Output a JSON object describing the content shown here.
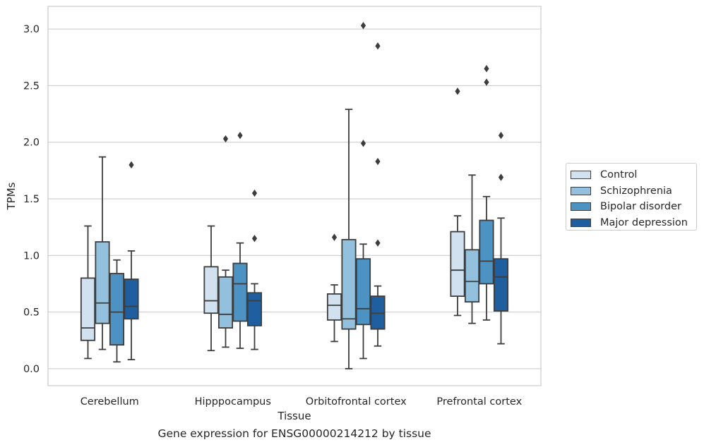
{
  "chart_data": {
    "type": "boxplot",
    "xlabel": "Tissue",
    "ylabel": "TPMs",
    "ylim": [
      -0.15,
      3.2
    ],
    "yticks": [
      0.0,
      0.5,
      1.0,
      1.5,
      2.0,
      2.5,
      3.0
    ],
    "ytick_labels": [
      "0.0",
      "0.5",
      "1.0",
      "1.5",
      "2.0",
      "2.5",
      "3.0"
    ],
    "grid": "horizontal",
    "legend_position": "right",
    "categories": [
      "Cerebellum",
      "Hipppocampus",
      "Orbitofrontal cortex",
      "Prefrontal cortex"
    ],
    "series": [
      {
        "name": "Control",
        "color": "#d1e1f0",
        "boxes": [
          {
            "whislo": 0.09,
            "q1": 0.25,
            "med": 0.36,
            "q3": 0.8,
            "whishi": 1.26,
            "fliers": []
          },
          {
            "whislo": 0.16,
            "q1": 0.49,
            "med": 0.6,
            "q3": 0.9,
            "whishi": 1.26,
            "fliers": []
          },
          {
            "whislo": 0.24,
            "q1": 0.43,
            "med": 0.56,
            "q3": 0.66,
            "whishi": 0.74,
            "fliers": [
              1.16
            ]
          },
          {
            "whislo": 0.47,
            "q1": 0.64,
            "med": 0.87,
            "q3": 1.21,
            "whishi": 1.35,
            "fliers": [
              2.45
            ]
          }
        ]
      },
      {
        "name": "Schizophrenia",
        "color": "#93c0dd",
        "boxes": [
          {
            "whislo": 0.17,
            "q1": 0.4,
            "med": 0.58,
            "q3": 1.12,
            "whishi": 1.87,
            "fliers": []
          },
          {
            "whislo": 0.19,
            "q1": 0.36,
            "med": 0.48,
            "q3": 0.81,
            "whishi": 0.87,
            "fliers": [
              2.03
            ]
          },
          {
            "whislo": 0.0,
            "q1": 0.35,
            "med": 0.44,
            "q3": 1.14,
            "whishi": 2.29,
            "fliers": []
          },
          {
            "whislo": 0.4,
            "q1": 0.59,
            "med": 0.77,
            "q3": 1.05,
            "whishi": 1.71,
            "fliers": []
          }
        ]
      },
      {
        "name": "Bipolar disorder",
        "color": "#4c92c2",
        "boxes": [
          {
            "whislo": 0.06,
            "q1": 0.21,
            "med": 0.5,
            "q3": 0.84,
            "whishi": 0.96,
            "fliers": []
          },
          {
            "whislo": 0.18,
            "q1": 0.42,
            "med": 0.75,
            "q3": 0.93,
            "whishi": 1.11,
            "fliers": [
              2.06
            ]
          },
          {
            "whislo": 0.09,
            "q1": 0.39,
            "med": 0.53,
            "q3": 0.97,
            "whishi": 1.1,
            "fliers": [
              1.99,
              3.03
            ]
          },
          {
            "whislo": 0.43,
            "q1": 0.75,
            "med": 0.95,
            "q3": 1.31,
            "whishi": 1.52,
            "fliers": [
              2.53,
              2.65
            ]
          }
        ]
      },
      {
        "name": "Major depression",
        "color": "#1f5fa0",
        "boxes": [
          {
            "whislo": 0.08,
            "q1": 0.44,
            "med": 0.55,
            "q3": 0.79,
            "whishi": 1.04,
            "fliers": [
              1.8
            ]
          },
          {
            "whislo": 0.17,
            "q1": 0.38,
            "med": 0.6,
            "q3": 0.67,
            "whishi": 0.75,
            "fliers": [
              1.15,
              1.55
            ]
          },
          {
            "whislo": 0.2,
            "q1": 0.35,
            "med": 0.49,
            "q3": 0.64,
            "whishi": 0.73,
            "fliers": [
              1.11,
              1.83,
              2.85
            ]
          },
          {
            "whislo": 0.22,
            "q1": 0.51,
            "med": 0.81,
            "q3": 0.97,
            "whishi": 1.33,
            "fliers": [
              1.69,
              2.06
            ]
          }
        ]
      }
    ]
  },
  "legend": {
    "items": [
      {
        "label": "Control",
        "color": "#d1e1f0"
      },
      {
        "label": "Schizophrenia",
        "color": "#93c0dd"
      },
      {
        "label": "Bipolar disorder",
        "color": "#4c92c2"
      },
      {
        "label": "Major depression",
        "color": "#1f5fa0"
      }
    ]
  },
  "caption": "Gene expression for ENSG00000214212 by tissue"
}
